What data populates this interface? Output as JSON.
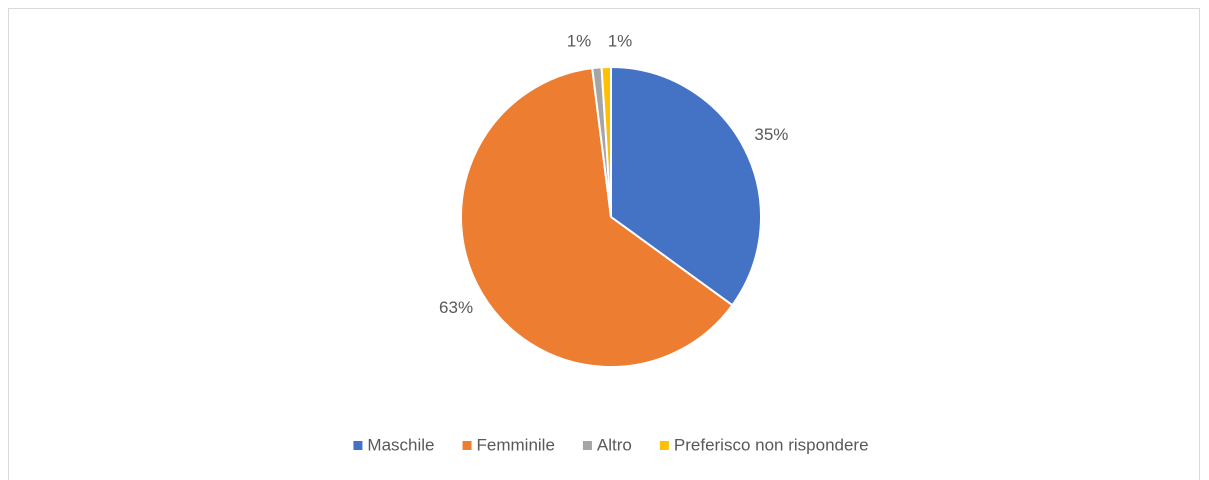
{
  "chart_data": {
    "type": "pie",
    "categories": [
      "Maschile",
      "Femminile",
      "Altro",
      "Preferisco non rispondere"
    ],
    "values": [
      35,
      63,
      1,
      1
    ],
    "value_labels": [
      "35%",
      "63%",
      "1%",
      "1%"
    ],
    "colors": [
      "#4472c4",
      "#ed7d31",
      "#a5a5a5",
      "#ffc000"
    ],
    "legend": "bottom"
  }
}
